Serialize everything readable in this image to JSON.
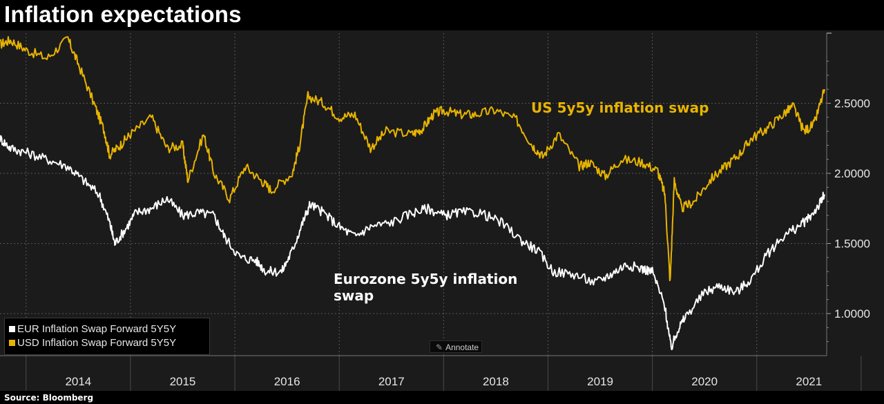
{
  "title": "Inflation expectations",
  "source": "Source:  Bloomberg",
  "legend": [
    {
      "label": "EUR Inflation Swap Forward 5Y5Y",
      "color": "#ffffff"
    },
    {
      "label": "USD Inflation Swap Forward 5Y5Y",
      "color": "#e8b400"
    }
  ],
  "annotate_button": {
    "label": "Annotate",
    "icon": "pencil-icon"
  },
  "colors": {
    "background": "#000000",
    "plot": "#1b1b1b",
    "usd": "#e8b400",
    "eur": "#ffffff",
    "grid": "#555555"
  },
  "chart_data": {
    "type": "line",
    "title": "Inflation expectations",
    "x_ticks": [
      "2014",
      "2015",
      "2016",
      "2017",
      "2018",
      "2019",
      "2020",
      "2021"
    ],
    "x_range": [
      2013.75,
      2021.67
    ],
    "y_ticks": [
      "1.0000",
      "1.5000",
      "2.0000",
      "2.5000"
    ],
    "y_range": [
      0.7,
      3.0
    ],
    "y_axis_side": "right",
    "grid": true,
    "legend_position": "bottom-left",
    "annotations": [
      {
        "text": "US 5y5y inflation swap",
        "color": "#e8b400",
        "x": 2018.2,
        "y": 2.46
      },
      {
        "text": "Eurozone 5y5y inflation swap",
        "color": "#ffffff",
        "x": 2017.0,
        "y": 1.2
      }
    ],
    "series": [
      {
        "name": "USD Inflation Swap Forward 5Y5Y",
        "color": "#e8b400",
        "points": [
          [
            2013.75,
            2.92
          ],
          [
            2013.85,
            2.95
          ],
          [
            2014.0,
            2.88
          ],
          [
            2014.2,
            2.82
          ],
          [
            2014.4,
            2.96
          ],
          [
            2014.5,
            2.78
          ],
          [
            2014.65,
            2.5
          ],
          [
            2014.75,
            2.3
          ],
          [
            2014.8,
            2.13
          ],
          [
            2014.9,
            2.2
          ],
          [
            2015.0,
            2.28
          ],
          [
            2015.2,
            2.4
          ],
          [
            2015.35,
            2.18
          ],
          [
            2015.5,
            2.2
          ],
          [
            2015.55,
            1.95
          ],
          [
            2015.7,
            2.28
          ],
          [
            2015.8,
            2.0
          ],
          [
            2015.95,
            1.82
          ],
          [
            2016.1,
            2.05
          ],
          [
            2016.25,
            1.95
          ],
          [
            2016.35,
            1.88
          ],
          [
            2016.55,
            2.0
          ],
          [
            2016.62,
            2.2
          ],
          [
            2016.7,
            2.55
          ],
          [
            2016.85,
            2.5
          ],
          [
            2017.0,
            2.4
          ],
          [
            2017.15,
            2.42
          ],
          [
            2017.3,
            2.18
          ],
          [
            2017.45,
            2.3
          ],
          [
            2017.7,
            2.28
          ],
          [
            2017.8,
            2.32
          ],
          [
            2017.9,
            2.42
          ],
          [
            2018.0,
            2.45
          ],
          [
            2018.15,
            2.42
          ],
          [
            2018.3,
            2.42
          ],
          [
            2018.5,
            2.45
          ],
          [
            2018.7,
            2.38
          ],
          [
            2018.85,
            2.2
          ],
          [
            2018.95,
            2.12
          ],
          [
            2019.1,
            2.28
          ],
          [
            2019.3,
            2.05
          ],
          [
            2019.4,
            2.08
          ],
          [
            2019.55,
            1.98
          ],
          [
            2019.7,
            2.1
          ],
          [
            2019.9,
            2.08
          ],
          [
            2020.05,
            2.02
          ],
          [
            2020.12,
            1.85
          ],
          [
            2020.17,
            1.22
          ],
          [
            2020.21,
            1.95
          ],
          [
            2020.28,
            1.75
          ],
          [
            2020.4,
            1.8
          ],
          [
            2020.55,
            1.95
          ],
          [
            2020.7,
            2.05
          ],
          [
            2020.85,
            2.15
          ],
          [
            2020.95,
            2.25
          ],
          [
            2021.1,
            2.32
          ],
          [
            2021.25,
            2.42
          ],
          [
            2021.35,
            2.48
          ],
          [
            2021.45,
            2.3
          ],
          [
            2021.55,
            2.35
          ],
          [
            2021.65,
            2.6
          ]
        ]
      },
      {
        "name": "EUR Inflation Swap Forward 5Y5Y",
        "color": "#ffffff",
        "points": [
          [
            2013.75,
            2.25
          ],
          [
            2013.85,
            2.18
          ],
          [
            2014.0,
            2.15
          ],
          [
            2014.2,
            2.1
          ],
          [
            2014.4,
            2.05
          ],
          [
            2014.55,
            1.95
          ],
          [
            2014.7,
            1.85
          ],
          [
            2014.8,
            1.65
          ],
          [
            2014.85,
            1.5
          ],
          [
            2014.95,
            1.6
          ],
          [
            2015.05,
            1.72
          ],
          [
            2015.2,
            1.75
          ],
          [
            2015.35,
            1.82
          ],
          [
            2015.5,
            1.7
          ],
          [
            2015.65,
            1.72
          ],
          [
            2015.8,
            1.7
          ],
          [
            2015.9,
            1.55
          ],
          [
            2016.05,
            1.4
          ],
          [
            2016.2,
            1.38
          ],
          [
            2016.3,
            1.3
          ],
          [
            2016.45,
            1.3
          ],
          [
            2016.55,
            1.45
          ],
          [
            2016.65,
            1.65
          ],
          [
            2016.72,
            1.78
          ],
          [
            2016.85,
            1.72
          ],
          [
            2017.0,
            1.62
          ],
          [
            2017.15,
            1.55
          ],
          [
            2017.3,
            1.62
          ],
          [
            2017.5,
            1.65
          ],
          [
            2017.7,
            1.72
          ],
          [
            2017.85,
            1.75
          ],
          [
            2018.0,
            1.7
          ],
          [
            2018.15,
            1.72
          ],
          [
            2018.35,
            1.72
          ],
          [
            2018.55,
            1.65
          ],
          [
            2018.75,
            1.52
          ],
          [
            2018.9,
            1.45
          ],
          [
            2019.05,
            1.3
          ],
          [
            2019.25,
            1.28
          ],
          [
            2019.45,
            1.22
          ],
          [
            2019.6,
            1.28
          ],
          [
            2019.75,
            1.35
          ],
          [
            2019.9,
            1.32
          ],
          [
            2020.0,
            1.3
          ],
          [
            2020.12,
            1.05
          ],
          [
            2020.18,
            0.75
          ],
          [
            2020.24,
            0.88
          ],
          [
            2020.32,
            0.98
          ],
          [
            2020.5,
            1.15
          ],
          [
            2020.65,
            1.2
          ],
          [
            2020.8,
            1.15
          ],
          [
            2020.95,
            1.25
          ],
          [
            2021.1,
            1.42
          ],
          [
            2021.25,
            1.55
          ],
          [
            2021.4,
            1.62
          ],
          [
            2021.5,
            1.68
          ],
          [
            2021.6,
            1.78
          ],
          [
            2021.65,
            1.85
          ]
        ]
      }
    ]
  }
}
